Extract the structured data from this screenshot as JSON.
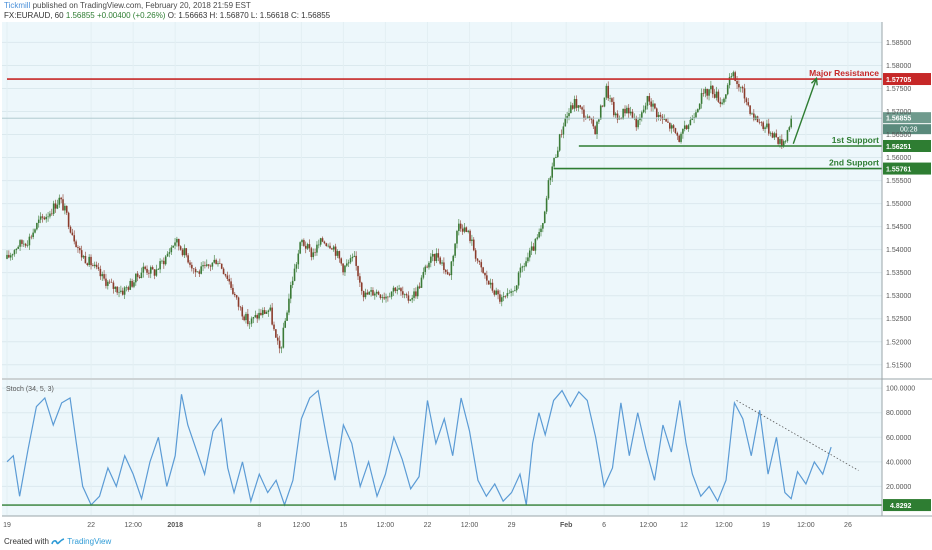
{
  "header": {
    "author": "Tickmill",
    "published": "published on TradingView.com, February 20, 2018 21:59 EST",
    "symbol": "FX:EURAUD, 60",
    "last": "1.56855",
    "change": "+0.00400 (+0.26%)",
    "ohlc_o": "O: 1.56663",
    "ohlc_h": "H: 1.56870",
    "ohlc_l": "L: 1.56618",
    "ohlc_c": "C: 1.56855"
  },
  "footer": {
    "created_with": "Created with",
    "brand": "TradingView"
  },
  "colors": {
    "background": "#edf7fb",
    "resistance": "#c62828",
    "support": "#2e7d32",
    "candle_up": "#3a7a36",
    "candle_down": "#8a3b2b",
    "stoch_line": "#5b9bd5",
    "last_price": "#6f9a8d"
  },
  "chart_data": [
    {
      "type": "candlestick",
      "title": "EURAUD, 60",
      "ylim": [
        1.513,
        1.589
      ],
      "y_ticks": [
        "1.58500",
        "1.58000",
        "1.57500",
        "1.57000",
        "1.56500",
        "1.56000",
        "1.55500",
        "1.55000",
        "1.54500",
        "1.54000",
        "1.53500",
        "1.53000",
        "1.52500",
        "1.52000",
        "1.51500"
      ],
      "y_tick_values": [
        1.585,
        1.58,
        1.575,
        1.57,
        1.565,
        1.56,
        1.555,
        1.55,
        1.545,
        1.54,
        1.535,
        1.53,
        1.525,
        1.52,
        1.515
      ],
      "x_ticks": [
        "19",
        "22",
        "12:00",
        "2018",
        "8",
        "12:00",
        "15",
        "12:00",
        "22",
        "12:00",
        "29",
        "Feb",
        "6",
        "12:00",
        "12",
        "12:00",
        "19",
        "12:00",
        "26"
      ],
      "x_tick_pos": [
        0,
        4,
        6,
        8,
        12,
        14,
        16,
        18,
        20,
        22,
        24,
        26.6,
        28.4,
        30.5,
        32.2,
        34.1,
        36.1,
        38,
        40
      ],
      "price_path": [
        [
          0,
          1.538
        ],
        [
          0.5,
          1.541
        ],
        [
          1,
          1.542
        ],
        [
          1.5,
          1.546
        ],
        [
          2,
          1.548
        ],
        [
          2.5,
          1.551
        ],
        [
          2.8,
          1.548
        ],
        [
          3,
          1.545
        ],
        [
          3.5,
          1.539
        ],
        [
          4,
          1.537
        ],
        [
          4.5,
          1.534
        ],
        [
          5,
          1.532
        ],
        [
          5.5,
          1.531
        ],
        [
          6,
          1.533
        ],
        [
          6.5,
          1.536
        ],
        [
          7,
          1.535
        ],
        [
          7.5,
          1.538
        ],
        [
          8,
          1.542
        ],
        [
          8.5,
          1.539
        ],
        [
          9,
          1.535
        ],
        [
          9.5,
          1.536
        ],
        [
          10,
          1.538
        ],
        [
          10.5,
          1.534
        ],
        [
          11,
          1.528
        ],
        [
          11.5,
          1.524
        ],
        [
          12,
          1.526
        ],
        [
          12.5,
          1.527
        ],
        [
          12.8,
          1.52
        ],
        [
          13,
          1.518
        ],
        [
          13.5,
          1.532
        ],
        [
          14,
          1.542
        ],
        [
          14.5,
          1.539
        ],
        [
          15,
          1.542
        ],
        [
          15.5,
          1.541
        ],
        [
          16,
          1.536
        ],
        [
          16.5,
          1.538
        ],
        [
          17,
          1.53
        ],
        [
          17.5,
          1.531
        ],
        [
          18,
          1.53
        ],
        [
          18.5,
          1.532
        ],
        [
          19,
          1.529
        ],
        [
          19.5,
          1.531
        ],
        [
          20,
          1.537
        ],
        [
          20.5,
          1.539
        ],
        [
          21,
          1.534
        ],
        [
          21.5,
          1.546
        ],
        [
          22,
          1.543
        ],
        [
          22.5,
          1.536
        ],
        [
          23,
          1.532
        ],
        [
          23.5,
          1.529
        ],
        [
          24,
          1.53
        ],
        [
          24.5,
          1.536
        ],
        [
          25,
          1.54
        ],
        [
          25.5,
          1.545
        ],
        [
          25.8,
          1.556
        ],
        [
          26,
          1.559
        ],
        [
          26.5,
          1.568
        ],
        [
          27,
          1.572
        ],
        [
          27.5,
          1.569
        ],
        [
          28,
          1.566
        ],
        [
          28.5,
          1.575
        ],
        [
          29,
          1.568
        ],
        [
          29.5,
          1.571
        ],
        [
          30,
          1.567
        ],
        [
          30.5,
          1.573
        ],
        [
          31,
          1.569
        ],
        [
          31.5,
          1.567
        ],
        [
          32,
          1.564
        ],
        [
          32.5,
          1.568
        ],
        [
          33,
          1.573
        ],
        [
          33.5,
          1.575
        ],
        [
          34,
          1.572
        ],
        [
          34.5,
          1.578
        ],
        [
          35,
          1.574
        ],
        [
          35.5,
          1.569
        ],
        [
          36,
          1.567
        ],
        [
          36.5,
          1.565
        ],
        [
          36.8,
          1.563
        ],
        [
          37,
          1.564
        ],
        [
          37.3,
          1.5686
        ]
      ],
      "levels": [
        {
          "name": "Major Resistance",
          "value": 1.57705,
          "label": "1.57705",
          "color": "#c62828",
          "x_from": 0
        },
        {
          "name": "1st Support",
          "value": 1.56251,
          "label": "1.56251",
          "color": "#2e7d32",
          "x_from": 27.2
        },
        {
          "name": "2nd Support",
          "value": 1.55761,
          "label": "1.55761",
          "color": "#2e7d32",
          "x_from": 26
        }
      ],
      "last_price": {
        "value": 1.56855,
        "label": "1.56855",
        "countdown": "00:28"
      },
      "arrow": {
        "from": [
          37.4,
          1.563
        ],
        "to": [
          38.5,
          1.5772
        ]
      }
    },
    {
      "type": "line",
      "title": "Stoch (34, 5, 3)",
      "ylim": [
        0,
        105
      ],
      "y_ticks": [
        "100.0000",
        "80.0000",
        "60.0000",
        "40.0000",
        "20.0000"
      ],
      "y_tick_values": [
        100,
        80,
        60,
        40,
        20
      ],
      "level": {
        "value": 4.8292,
        "label": "4.8292"
      },
      "series": [
        {
          "values": [
            [
              0,
              40
            ],
            [
              0.3,
              45
            ],
            [
              0.6,
              12
            ],
            [
              1,
              50
            ],
            [
              1.4,
              85
            ],
            [
              1.8,
              92
            ],
            [
              2.2,
              70
            ],
            [
              2.6,
              88
            ],
            [
              3,
              92
            ],
            [
              3.3,
              55
            ],
            [
              3.6,
              20
            ],
            [
              4,
              5
            ],
            [
              4.4,
              12
            ],
            [
              4.8,
              35
            ],
            [
              5.2,
              20
            ],
            [
              5.6,
              45
            ],
            [
              6,
              30
            ],
            [
              6.4,
              10
            ],
            [
              6.8,
              40
            ],
            [
              7.2,
              60
            ],
            [
              7.6,
              20
            ],
            [
              8,
              45
            ],
            [
              8.3,
              95
            ],
            [
              8.6,
              70
            ],
            [
              9,
              50
            ],
            [
              9.4,
              30
            ],
            [
              9.8,
              65
            ],
            [
              10.2,
              75
            ],
            [
              10.5,
              35
            ],
            [
              10.8,
              15
            ],
            [
              11.2,
              40
            ],
            [
              11.6,
              8
            ],
            [
              12,
              30
            ],
            [
              12.4,
              15
            ],
            [
              12.8,
              25
            ],
            [
              13.2,
              5
            ],
            [
              13.6,
              25
            ],
            [
              14,
              75
            ],
            [
              14.4,
              92
            ],
            [
              14.8,
              98
            ],
            [
              15.2,
              60
            ],
            [
              15.6,
              25
            ],
            [
              16,
              70
            ],
            [
              16.4,
              55
            ],
            [
              16.8,
              20
            ],
            [
              17.2,
              40
            ],
            [
              17.6,
              12
            ],
            [
              18,
              30
            ],
            [
              18.4,
              60
            ],
            [
              18.8,
              42
            ],
            [
              19.2,
              18
            ],
            [
              19.6,
              28
            ],
            [
              20,
              90
            ],
            [
              20.4,
              55
            ],
            [
              20.8,
              75
            ],
            [
              21.2,
              45
            ],
            [
              21.6,
              92
            ],
            [
              22,
              65
            ],
            [
              22.4,
              25
            ],
            [
              22.8,
              12
            ],
            [
              23.2,
              22
            ],
            [
              23.6,
              8
            ],
            [
              24,
              15
            ],
            [
              24.4,
              30
            ],
            [
              24.7,
              5
            ],
            [
              25,
              55
            ],
            [
              25.3,
              80
            ],
            [
              25.6,
              62
            ],
            [
              26,
              90
            ],
            [
              26.4,
              98
            ],
            [
              26.8,
              85
            ],
            [
              27.2,
              97
            ],
            [
              27.6,
              90
            ],
            [
              28,
              60
            ],
            [
              28.4,
              20
            ],
            [
              28.8,
              35
            ],
            [
              29.2,
              88
            ],
            [
              29.6,
              45
            ],
            [
              30,
              80
            ],
            [
              30.4,
              50
            ],
            [
              30.8,
              25
            ],
            [
              31.2,
              70
            ],
            [
              31.6,
              48
            ],
            [
              32,
              90
            ],
            [
              32.3,
              55
            ],
            [
              32.6,
              30
            ],
            [
              33,
              12
            ],
            [
              33.4,
              20
            ],
            [
              33.8,
              8
            ],
            [
              34.2,
              25
            ],
            [
              34.6,
              88
            ],
            [
              35,
              75
            ],
            [
              35.4,
              45
            ],
            [
              35.8,
              82
            ],
            [
              36.2,
              30
            ],
            [
              36.6,
              60
            ],
            [
              37,
              15
            ],
            [
              37.3,
              10
            ],
            [
              37.6,
              32
            ],
            [
              38,
              22
            ],
            [
              38.4,
              40
            ],
            [
              38.8,
              30
            ],
            [
              39.2,
              52
            ]
          ]
        }
      ],
      "trendline": {
        "from": [
          34.7,
          90
        ],
        "to": [
          40.5,
          33
        ]
      }
    }
  ]
}
